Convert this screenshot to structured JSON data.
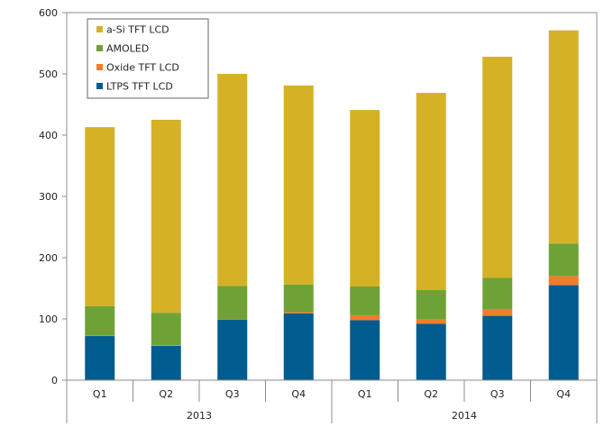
{
  "chart_data": {
    "type": "bar",
    "stacked": true,
    "categories": [
      "Q1",
      "Q2",
      "Q3",
      "Q4",
      "Q1",
      "Q2",
      "Q3",
      "Q4"
    ],
    "groups": [
      {
        "label": "2013",
        "count": 4
      },
      {
        "label": "2014",
        "count": 4
      }
    ],
    "yticks": [
      "0",
      "100",
      "200",
      "300",
      "400",
      "500",
      "600"
    ],
    "ylim": [
      0,
      600
    ],
    "grid": false,
    "legend_position": "top-left",
    "series": [
      {
        "name": "LTPS TFT LCD",
        "color": "#005b8e",
        "values": [
          72,
          56,
          99,
          109,
          98,
          92,
          105,
          155
        ]
      },
      {
        "name": "Oxide TFT LCD",
        "color": "#ef7d2c",
        "values": [
          1,
          1,
          1,
          2,
          8,
          7,
          10,
          15
        ]
      },
      {
        "name": "AMOLED",
        "color": "#6ea236",
        "values": [
          48,
          53,
          54,
          45,
          47,
          48,
          52,
          53
        ]
      },
      {
        "name": "a-Si TFT LCD",
        "color": "#d5b126",
        "values": [
          292,
          315,
          346,
          325,
          288,
          322,
          361,
          348
        ]
      }
    ]
  }
}
